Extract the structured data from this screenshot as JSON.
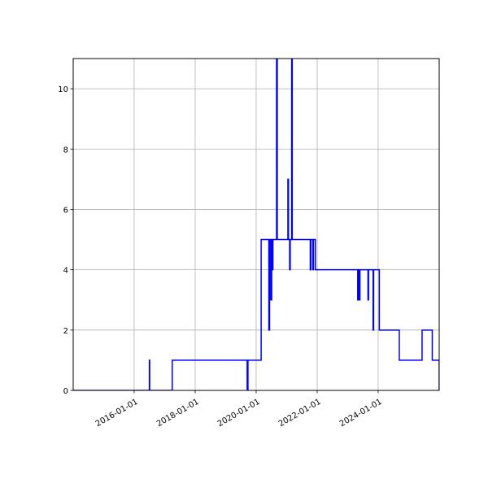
{
  "chart_data": {
    "type": "line",
    "title": "",
    "xlabel": "",
    "ylabel": "",
    "x_axis": {
      "type": "date",
      "range": [
        "2014-01-01",
        "2026-01-01"
      ],
      "ticks": [
        "2016-01-01",
        "2018-01-01",
        "2020-01-01",
        "2022-01-01",
        "2024-01-01"
      ]
    },
    "y_axis": {
      "range": [
        0,
        11
      ],
      "ticks": [
        0,
        2,
        4,
        6,
        8,
        10
      ]
    },
    "grid": true,
    "legend": "none",
    "series": [
      {
        "color": "#0000ff",
        "step": "post",
        "points": [
          [
            "2014-01-01",
            0
          ],
          [
            "2016-07-01",
            1
          ],
          [
            "2016-07-05",
            0
          ],
          [
            "2017-04-01",
            1
          ],
          [
            "2019-09-15",
            0
          ],
          [
            "2019-09-25",
            1
          ],
          [
            "2020-03-01",
            5
          ],
          [
            "2020-06-01",
            2
          ],
          [
            "2020-06-10",
            5
          ],
          [
            "2020-06-25",
            3
          ],
          [
            "2020-07-05",
            5
          ],
          [
            "2020-07-12",
            4
          ],
          [
            "2020-07-20",
            5
          ],
          [
            "2020-09-01",
            11
          ],
          [
            "2020-09-10",
            5
          ],
          [
            "2021-01-15",
            7
          ],
          [
            "2021-01-22",
            5
          ],
          [
            "2021-02-05",
            4
          ],
          [
            "2021-02-12",
            5
          ],
          [
            "2021-03-01",
            11
          ],
          [
            "2021-03-08",
            5
          ],
          [
            "2021-10-10",
            4
          ],
          [
            "2021-10-18",
            5
          ],
          [
            "2021-11-10",
            4
          ],
          [
            "2021-11-18",
            5
          ],
          [
            "2021-12-10",
            4
          ],
          [
            "2023-05-01",
            3
          ],
          [
            "2023-05-10",
            4
          ],
          [
            "2023-05-20",
            3
          ],
          [
            "2023-05-28",
            4
          ],
          [
            "2023-09-01",
            3
          ],
          [
            "2023-09-08",
            4
          ],
          [
            "2023-11-01",
            2
          ],
          [
            "2023-11-08",
            4
          ],
          [
            "2024-01-15",
            2
          ],
          [
            "2024-09-10",
            1
          ],
          [
            "2025-06-10",
            2
          ],
          [
            "2025-10-10",
            1
          ],
          [
            "2026-01-01",
            0
          ]
        ]
      }
    ]
  }
}
